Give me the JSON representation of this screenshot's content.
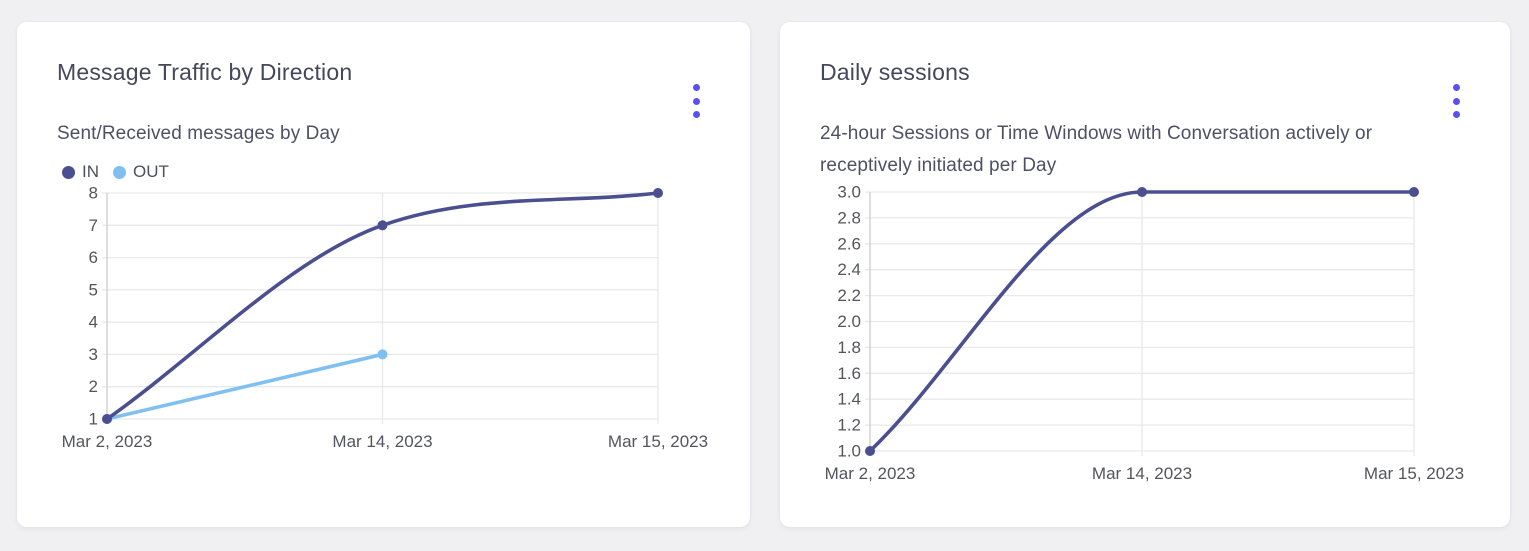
{
  "colors": {
    "accent_menu": "#5a50f0",
    "series_in": "#4b4e8f",
    "series_out": "#7fc0f1",
    "grid_line": "#e9e9ec",
    "axis_line": "#cfcfd4",
    "tick_text": "#54555e",
    "title_text": "#45485a",
    "subtitle_text": "#4e5164",
    "card_background": "#ffffff",
    "page_background": "#f0f0f3"
  },
  "cards": [
    {
      "menu_icon": "vertical-ellipsis"
    },
    {
      "menu_icon": "vertical-ellipsis"
    }
  ],
  "chart_data": [
    {
      "type": "line",
      "title": "Message Traffic by Direction",
      "subtitle_lines": [
        "Sent/Received messages by Day"
      ],
      "categories": [
        "Mar 2, 2023",
        "Mar 14, 2023",
        "Mar 15, 2023"
      ],
      "series": [
        {
          "name": "IN",
          "color": "#4b4e8f",
          "values": [
            1,
            7,
            8
          ]
        },
        {
          "name": "OUT",
          "color": "#7fc0f1",
          "values": [
            1,
            3,
            null
          ]
        }
      ],
      "ylim": [
        1,
        8
      ],
      "ytick_step": 1,
      "ytick_decimals": 0,
      "legend_position": "top-left",
      "grid": true,
      "smooth": true
    },
    {
      "type": "line",
      "title": "Daily sessions",
      "subtitle_lines": [
        "24-hour Sessions or Time Windows with Conversation actively or",
        "receptively initiated per Day"
      ],
      "categories": [
        "Mar 2, 2023",
        "Mar 14, 2023",
        "Mar 15, 2023"
      ],
      "series": [
        {
          "name": "Daily sessions",
          "color": "#4b4e8f",
          "values": [
            1.0,
            3.0,
            3.0
          ]
        }
      ],
      "ylim": [
        1.0,
        3.0
      ],
      "ytick_step": 0.2,
      "ytick_decimals": 1,
      "legend_position": "none",
      "grid": true,
      "smooth": true
    }
  ]
}
